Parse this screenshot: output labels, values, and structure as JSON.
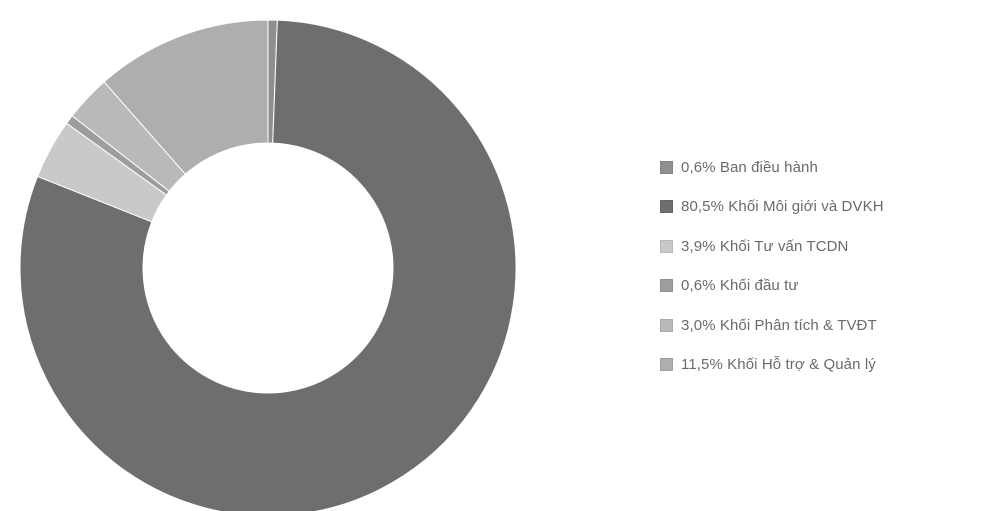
{
  "chart_data": {
    "type": "pie",
    "donut": true,
    "title": "",
    "legend_position": "right",
    "categories": [
      "Ban điều hành",
      "Khối Môi giới và DVKH",
      "Khối Tư vấn TCDN",
      "Khối đầu tư",
      "Khối Phân tích & TVĐT",
      "Khối Hỗ trợ & Quản lý"
    ],
    "values": [
      0.6,
      80.5,
      3.9,
      0.6,
      3.0,
      11.5
    ],
    "legend_labels": [
      "0,6% Ban điều hành",
      "80,5% Khối Môi giới và DVKH",
      "3,9% Khối Tư vấn TCDN",
      "0,6% Khối đầu tư",
      "3,0% Khối Phân tích & TVĐT",
      "11,5% Khối Hỗ trợ & Quản lý"
    ],
    "colors": [
      "#8f8f8f",
      "#6e6e6e",
      "#c9c9c9",
      "#9d9d9d",
      "#b9b9b9",
      "#aeaeae"
    ]
  }
}
